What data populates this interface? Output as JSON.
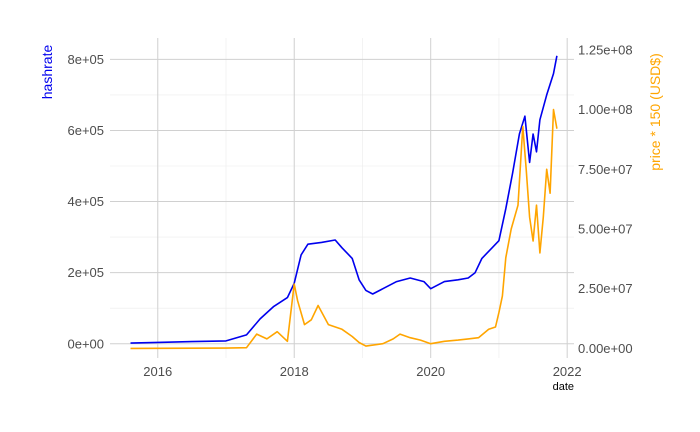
{
  "chart_data": {
    "type": "line",
    "xlabel": "date",
    "ylabel_left": "hashrate",
    "ylabel_right": "price * 150  (USD$)",
    "xlim": [
      2015.3,
      2022.1
    ],
    "ylim_left": [
      -40000,
      860000
    ],
    "ylim_right": [
      -4000000,
      130000000
    ],
    "x_ticks": [
      2016,
      2018,
      2020,
      2022
    ],
    "x_tick_labels": [
      "2016",
      "2018",
      "2020",
      "2022"
    ],
    "y_left_ticks": [
      0,
      200000,
      400000,
      600000,
      800000
    ],
    "y_left_tick_labels": [
      "0e+00",
      "2e+05",
      "4e+05",
      "6e+05",
      "8e+05"
    ],
    "y_right_ticks": [
      0,
      25000000,
      50000000,
      75000000,
      100000000,
      125000000
    ],
    "y_right_tick_labels": [
      "0.00e+00",
      "2.50e+07",
      "5.00e+07",
      "7.50e+07",
      "1.00e+08",
      "1.25e+08"
    ],
    "grid": true,
    "series": [
      {
        "name": "hashrate",
        "axis": "left",
        "color": "#0000ee",
        "x": [
          2015.6,
          2016.0,
          2016.5,
          2017.0,
          2017.3,
          2017.5,
          2017.7,
          2017.9,
          2018.0,
          2018.1,
          2018.2,
          2018.4,
          2018.6,
          2018.7,
          2018.85,
          2018.95,
          2019.05,
          2019.15,
          2019.3,
          2019.5,
          2019.7,
          2019.9,
          2020.0,
          2020.2,
          2020.4,
          2020.55,
          2020.65,
          2020.75,
          2020.9,
          2021.0,
          2021.1,
          2021.2,
          2021.3,
          2021.38,
          2021.45,
          2021.5,
          2021.55,
          2021.6,
          2021.7,
          2021.8,
          2021.85
        ],
        "y": [
          2000,
          4000,
          6000,
          8000,
          25000,
          70000,
          105000,
          130000,
          170000,
          250000,
          280000,
          285000,
          292000,
          270000,
          240000,
          180000,
          150000,
          140000,
          155000,
          175000,
          185000,
          175000,
          155000,
          175000,
          180000,
          185000,
          200000,
          240000,
          270000,
          290000,
          380000,
          480000,
          590000,
          640000,
          510000,
          590000,
          540000,
          630000,
          700000,
          760000,
          810000
        ]
      },
      {
        "name": "price * 150  (USD$)",
        "axis": "right",
        "color": "#ffa500",
        "x": [
          2015.6,
          2016.0,
          2016.5,
          2017.0,
          2017.3,
          2017.45,
          2017.6,
          2017.75,
          2017.9,
          2018.0,
          2018.05,
          2018.15,
          2018.25,
          2018.35,
          2018.5,
          2018.7,
          2018.85,
          2018.95,
          2019.05,
          2019.3,
          2019.45,
          2019.55,
          2019.7,
          2019.85,
          2020.0,
          2020.2,
          2020.4,
          2020.55,
          2020.7,
          2020.85,
          2020.95,
          2021.0,
          2021.05,
          2021.1,
          2021.18,
          2021.28,
          2021.35,
          2021.4,
          2021.45,
          2021.5,
          2021.55,
          2021.6,
          2021.65,
          2021.7,
          2021.75,
          2021.8,
          2021.85
        ],
        "y": [
          30000,
          60000,
          100000,
          150000,
          300000,
          6000000,
          4000000,
          7000000,
          3000000,
          27000000,
          20000000,
          10000000,
          12000000,
          18000000,
          10000000,
          8000000,
          5000000,
          2500000,
          1000000,
          2000000,
          4000000,
          6000000,
          4500000,
          3500000,
          2000000,
          3000000,
          3500000,
          4000000,
          4500000,
          8000000,
          9000000,
          15000000,
          22000000,
          38000000,
          50000000,
          60000000,
          93000000,
          75000000,
          55000000,
          45000000,
          60000000,
          40000000,
          55000000,
          75000000,
          65000000,
          100000000,
          92000000
        ]
      }
    ]
  }
}
